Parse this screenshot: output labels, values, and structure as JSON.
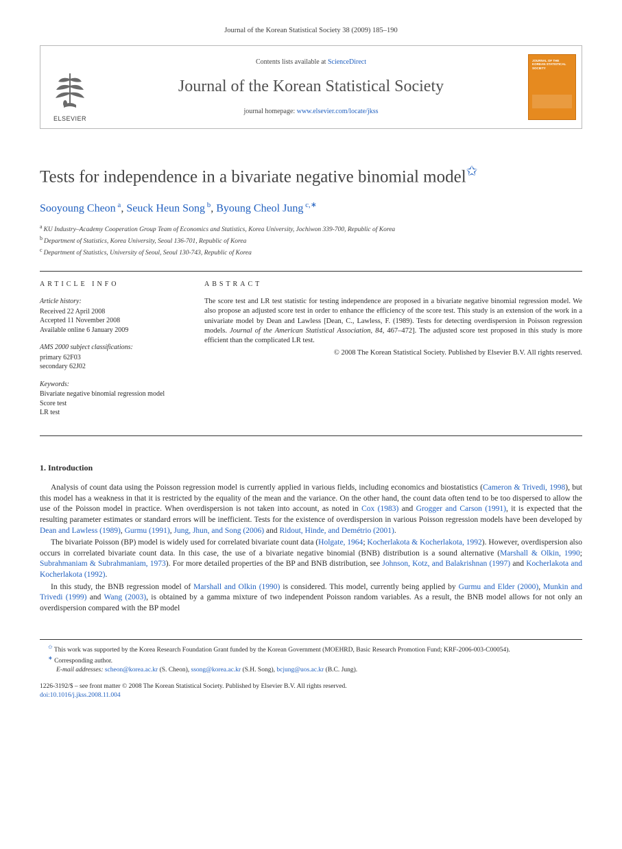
{
  "running_head": "Journal of the Korean Statistical Society 38 (2009) 185–190",
  "masthead": {
    "contents_prefix": "Contents lists available at ",
    "contents_link": "ScienceDirect",
    "journal_name": "Journal of the Korean Statistical Society",
    "homepage_prefix": "journal homepage: ",
    "homepage_url": "www.elsevier.com/locate/jkss",
    "publisher_label": "ELSEVIER",
    "cover_title": "JOURNAL OF THE KOREAN STATISTICAL SOCIETY"
  },
  "title": "Tests for independence in a bivariate negative binomial model",
  "title_star": "✩",
  "authors": [
    {
      "name": "Sooyoung Cheon",
      "marks": "a"
    },
    {
      "name": "Seuck Heun Song",
      "marks": "b"
    },
    {
      "name": "Byoung Cheol Jung",
      "marks": "c,∗"
    }
  ],
  "author_sep": ", ",
  "affiliations": [
    {
      "mark": "a",
      "text": "KU Industry–Academy Cooperation Group Team of Economics and Statistics, Korea University, Jochiwon 339-700, Republic of Korea"
    },
    {
      "mark": "b",
      "text": "Department of Statistics, Korea University, Seoul 136-701, Republic of Korea"
    },
    {
      "mark": "c",
      "text": "Department of Statistics, University of Seoul, Seoul 130-743, Republic of Korea"
    }
  ],
  "article_info": {
    "heading": "article info",
    "history_label": "Article history:",
    "history": [
      "Received 22 April 2008",
      "Accepted 11 November 2008",
      "Available online 6 January 2009"
    ],
    "ams_label": "AMS 2000 subject classifications:",
    "ams": [
      "primary 62F03",
      "secondary 62J02"
    ],
    "keywords_label": "Keywords:",
    "keywords": [
      "Bivariate negative binomial regression model",
      "Score test",
      "LR test"
    ]
  },
  "abstract": {
    "heading": "abstract",
    "text_parts": {
      "p1a": "The score test and LR test statistic for testing independence are proposed in a bivariate negative binomial regression model. We also propose an adjusted score test in order to enhance the efficiency of the score test. This study is an extension of the work in a univariate model by Dean and Lawless [Dean, C., Lawless, F. (1989). Tests for detecting overdispersion in Poisson regression models. ",
      "p1_journal": "Journal of the American Statistical Association",
      "p1b": ", ",
      "p1_vol": "84",
      "p1c": ", 467–472]. The adjusted score test proposed in this study is more efficient than the complicated LR test."
    },
    "copyright": "© 2008 The Korean Statistical Society. Published by Elsevier B.V. All rights reserved."
  },
  "section1": {
    "heading": "1. Introduction",
    "paragraphs": [
      {
        "runs": [
          {
            "t": "Analysis of count data using the Poisson regression model is currently applied in various fields, including economics and biostatistics ("
          },
          {
            "t": "Cameron & Trivedi, 1998",
            "link": true
          },
          {
            "t": "), but this model has a weakness in that it is restricted by the equality of the mean and the variance. On the other hand, the count data often tend to be too dispersed to allow the use of the Poisson model in practice. When overdispersion is not taken into account, as noted in "
          },
          {
            "t": "Cox (1983)",
            "link": true
          },
          {
            "t": " and "
          },
          {
            "t": "Grogger and Carson (1991)",
            "link": true
          },
          {
            "t": ", it is expected that the resulting parameter estimates or standard errors will be inefficient. Tests for the existence of overdispersion in various Poisson regression models have been developed by "
          },
          {
            "t": "Dean and Lawless (1989)",
            "link": true
          },
          {
            "t": ", "
          },
          {
            "t": "Gurmu (1991)",
            "link": true
          },
          {
            "t": ", "
          },
          {
            "t": "Jung, Jhun, and Song (2006)",
            "link": true
          },
          {
            "t": " and "
          },
          {
            "t": "Ridout, Hinde, and Demétrio (2001)",
            "link": true
          },
          {
            "t": "."
          }
        ]
      },
      {
        "runs": [
          {
            "t": "The bivariate Poisson (BP) model is widely used for correlated bivariate count data ("
          },
          {
            "t": "Holgate, 1964",
            "link": true
          },
          {
            "t": "; "
          },
          {
            "t": "Kocherlakota & Kocherlakota, 1992",
            "link": true
          },
          {
            "t": "). However, overdispersion also occurs in correlated bivariate count data. In this case, the use of a bivariate negative binomial (BNB) distribution is a sound alternative ("
          },
          {
            "t": "Marshall & Olkin, 1990",
            "link": true
          },
          {
            "t": "; "
          },
          {
            "t": "Subrahmaniam & Subrahmaniam, 1973",
            "link": true
          },
          {
            "t": "). For more detailed properties of the BP and BNB distribution, see "
          },
          {
            "t": "Johnson, Kotz, and Balakrishnan (1997)",
            "link": true
          },
          {
            "t": " and "
          },
          {
            "t": "Kocherlakota and Kocherlakota (1992)",
            "link": true
          },
          {
            "t": "."
          }
        ]
      },
      {
        "runs": [
          {
            "t": "In this study, the BNB regression model of "
          },
          {
            "t": "Marshall and Olkin (1990)",
            "link": true
          },
          {
            "t": " is considered. This model, currently being applied by "
          },
          {
            "t": "Gurmu and Elder (2000)",
            "link": true
          },
          {
            "t": ", "
          },
          {
            "t": "Munkin and Trivedi (1999)",
            "link": true
          },
          {
            "t": " and "
          },
          {
            "t": "Wang (2003)",
            "link": true
          },
          {
            "t": ", is obtained by a gamma mixture of two independent Poisson random variables. As a result, the BNB model allows for not only an overdispersion compared with the BP model"
          }
        ]
      }
    ]
  },
  "footnotes": {
    "funding_mark": "✩",
    "funding": "This work was supported by the Korea Research Foundation Grant funded by the Korean Government (MOEHRD, Basic Research Promotion Fund; KRF-2006-003-C00054).",
    "corr_mark": "∗",
    "corr_label": "Corresponding author.",
    "emails_label": "E-mail addresses:",
    "emails": [
      {
        "addr": "scheon@korea.ac.kr",
        "who": "(S. Cheon)"
      },
      {
        "addr": "ssong@korea.ac.kr",
        "who": "(S.H. Song)"
      },
      {
        "addr": "bcjung@uos.ac.kr",
        "who": "(B.C. Jung)"
      }
    ]
  },
  "footer": {
    "line1": "1226-3192/$ – see front matter © 2008 The Korean Statistical Society. Published by Elsevier B.V. All rights reserved.",
    "doi_label": "doi:",
    "doi": "10.1016/j.jkss.2008.11.004"
  },
  "colors": {
    "link": "#1f5fbf",
    "text": "#2a2a2a",
    "rule": "#333333",
    "cover": "#e68a1f"
  }
}
